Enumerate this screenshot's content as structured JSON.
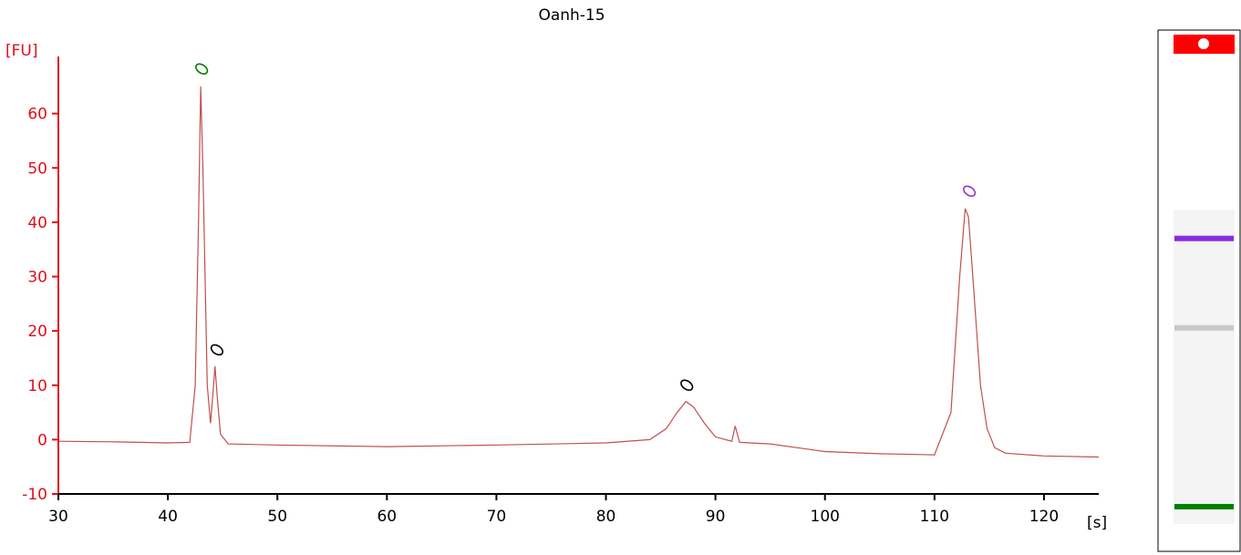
{
  "chart_data": {
    "type": "line",
    "title": "Oanh-15",
    "ylabel": "[FU]",
    "xlabel": "[s]",
    "xlim": [
      30,
      125
    ],
    "ylim": [
      -10,
      70
    ],
    "xticks": [
      30,
      40,
      50,
      60,
      70,
      80,
      90,
      100,
      110,
      120
    ],
    "yticks": [
      -10,
      0,
      10,
      20,
      30,
      40,
      50,
      60
    ],
    "grid": false,
    "series": [
      {
        "color": "#c0504d",
        "x": [
          30,
          35,
          40,
          42,
          42.5,
          42.8,
          43.0,
          43.2,
          43.6,
          43.9,
          44.1,
          44.3,
          44.5,
          44.8,
          45.5,
          50,
          60,
          70,
          80,
          84,
          85.5,
          86.5,
          87.3,
          88.0,
          89,
          90,
          91.5,
          91.8,
          92.2,
          95,
          100,
          105,
          110,
          111.5,
          112.3,
          112.8,
          113.1,
          113.5,
          114.2,
          114.8,
          115.5,
          116.5,
          120,
          125
        ],
        "y": [
          -0.3,
          -0.4,
          -0.6,
          -0.5,
          10,
          40,
          65,
          50,
          10,
          3,
          8,
          13.5,
          8,
          1,
          -0.8,
          -1.0,
          -1.3,
          -1.0,
          -0.6,
          0,
          2,
          5,
          7,
          6,
          3,
          0.5,
          -0.3,
          2.5,
          -0.5,
          -0.8,
          -2.2,
          -2.6,
          -2.8,
          5,
          30,
          42.5,
          41,
          30,
          10,
          2,
          -1.5,
          -2.5,
          -3.0,
          -3.2
        ]
      }
    ],
    "peaks": [
      {
        "x": 43.0,
        "y": 65.2,
        "marker_color": "#008000"
      },
      {
        "x": 44.4,
        "y": 13.5,
        "marker_color": "#000000"
      },
      {
        "x": 87.3,
        "y": 7.0,
        "marker_color": "#000000"
      },
      {
        "x": 113.1,
        "y": 42.7,
        "marker_color": "#9933cc"
      }
    ]
  },
  "gel_lane": {
    "top_color": "#ff0000",
    "bands": [
      {
        "position": 0.37,
        "color": "#8a2be2"
      },
      {
        "position": 0.55,
        "color": "#c8c8c8"
      },
      {
        "position": 0.91,
        "color": "#008000"
      }
    ]
  }
}
